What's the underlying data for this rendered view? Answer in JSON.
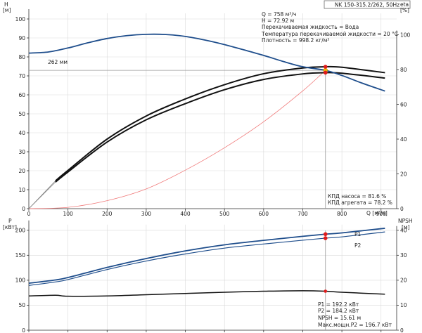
{
  "model_label": "NK 150-315.2/262, 50Hz",
  "top_panel": {
    "left_axis_title": "H",
    "left_axis_unit": "[м]",
    "right_axis_title": "eta",
    "right_axis_unit": "[%]",
    "x_axis_label": "Q [м³/ч]",
    "impeller_label": "262 мм",
    "duty_info": [
      "Q = 758 м³/ч",
      "H = 72.92 м",
      "Перекачиваемая жидкость = Вода",
      "Температура перекачиваемой жидкости = 20 °C",
      "Плотность = 998.2 кг/м³"
    ],
    "efficiency_info": [
      "КПД насоса = 81.6 %",
      "КПД агрегата = 78.2 %"
    ]
  },
  "bottom_panel": {
    "left_axis_title": "P",
    "left_axis_unit": "[кВт]",
    "right_axis_title": "NPSH",
    "right_axis_unit": "[м]",
    "p1_label": "P1",
    "p2_label": "P2",
    "power_info": [
      "P1 = 192.2 кВт",
      "P2 = 184.2 кВт",
      "NPSH = 15.61 м",
      "Макс.мощн.P2 = 196.7 кВт"
    ]
  },
  "colors": {
    "head_curve": "#1f4e8c",
    "efficiency_curves": "#111111",
    "system_curve": "#f07a7a",
    "power_curves": "#1f4e8c",
    "npsh_curve": "#111111",
    "duty_point_head": "#f2b705",
    "duty_point_markers": "#e01b1b",
    "duty_guides": "#9a9a9a"
  },
  "chart_data": [
    {
      "type": "line",
      "name": "head_efficiency",
      "x_ticks": [
        0,
        100,
        200,
        300,
        400,
        500,
        600,
        700,
        800,
        900
      ],
      "y_left_ticks": [
        0,
        10,
        20,
        30,
        40,
        50,
        60,
        70,
        80,
        90,
        100
      ],
      "y_right_ticks": [
        0,
        20,
        40,
        60,
        80,
        100
      ],
      "xlim": [
        0,
        940
      ],
      "ylim_left": [
        0,
        110
      ],
      "ylim_right": [
        0,
        120
      ],
      "series": [
        {
          "name": "262 мм",
          "axis": "left",
          "x": [
            0,
            50,
            100,
            150,
            200,
            250,
            300,
            350,
            400,
            450,
            500,
            550,
            600,
            650,
            700,
            758,
            800,
            850,
            910
          ],
          "y": [
            82,
            82.6,
            84.7,
            87.4,
            89.7,
            91.2,
            91.9,
            91.8,
            90.8,
            88.9,
            86.5,
            83.7,
            80.8,
            77.6,
            74.8,
            72.92,
            70.2,
            66.3,
            62
          ]
        },
        {
          "name": "КПД насоса",
          "axis": "right",
          "x": [
            0,
            68,
            100,
            200,
            300,
            400,
            500,
            600,
            700,
            758,
            800,
            910
          ],
          "y": [
            0,
            16,
            22,
            40,
            53.3,
            63.1,
            71.3,
            77.6,
            80.9,
            81.6,
            81.3,
            78.2
          ]
        },
        {
          "name": "КПД агрегата",
          "axis": "right",
          "x": [
            0,
            68,
            100,
            200,
            300,
            400,
            500,
            600,
            700,
            758,
            800,
            910
          ],
          "y": [
            0,
            15.3,
            21.1,
            38.3,
            51.1,
            60.4,
            68.4,
            74.3,
            77.5,
            78.2,
            77.9,
            75.1
          ]
        },
        {
          "name": "system",
          "axis": "left",
          "x": [
            0,
            100,
            200,
            300,
            400,
            500,
            600,
            700,
            758
          ],
          "y": [
            0,
            0.7,
            4.2,
            10.4,
            20.3,
            32.1,
            45.8,
            62.1,
            72.92
          ]
        }
      ],
      "duty_point": {
        "x": 758,
        "head": 72.92,
        "eta_pump": 81.6,
        "eta_unit": 78.2
      }
    },
    {
      "type": "line",
      "name": "power_npsh",
      "x_ticks": [
        0,
        100,
        200,
        300,
        400,
        500,
        600,
        700,
        800,
        900
      ],
      "y_left_ticks": [
        0,
        50,
        100,
        150,
        200
      ],
      "y_right_ticks": [
        0,
        10,
        20,
        30,
        40
      ],
      "xlim": [
        0,
        940
      ],
      "ylim_left": [
        0,
        225
      ],
      "ylim_right": [
        0,
        45
      ],
      "series": [
        {
          "name": "P1",
          "axis": "left",
          "x": [
            0,
            68,
            100,
            200,
            300,
            400,
            500,
            600,
            700,
            758,
            800,
            910
          ],
          "y": [
            94,
            100.6,
            105.4,
            125.6,
            143.4,
            158.7,
            170.9,
            179.8,
            187.9,
            192.2,
            194.8,
            204
          ]
        },
        {
          "name": "P2",
          "axis": "left",
          "x": [
            0,
            68,
            100,
            200,
            300,
            400,
            500,
            600,
            700,
            758,
            800,
            910
          ],
          "y": [
            89.5,
            96.6,
            101.3,
            121.4,
            138.4,
            152.6,
            164.3,
            172.5,
            180.1,
            184.2,
            186.8,
            196.7
          ]
        },
        {
          "name": "NPSH",
          "axis": "right",
          "x": [
            0,
            68,
            100,
            200,
            300,
            400,
            500,
            600,
            700,
            758,
            800,
            910
          ],
          "y": [
            13.7,
            14,
            13.6,
            13.7,
            14.2,
            14.7,
            15.2,
            15.6,
            15.8,
            15.61,
            15.2,
            14.4
          ]
        }
      ],
      "duty_point": {
        "x": 758,
        "p1": 192.2,
        "p2": 184.2,
        "npsh": 15.61
      }
    }
  ]
}
